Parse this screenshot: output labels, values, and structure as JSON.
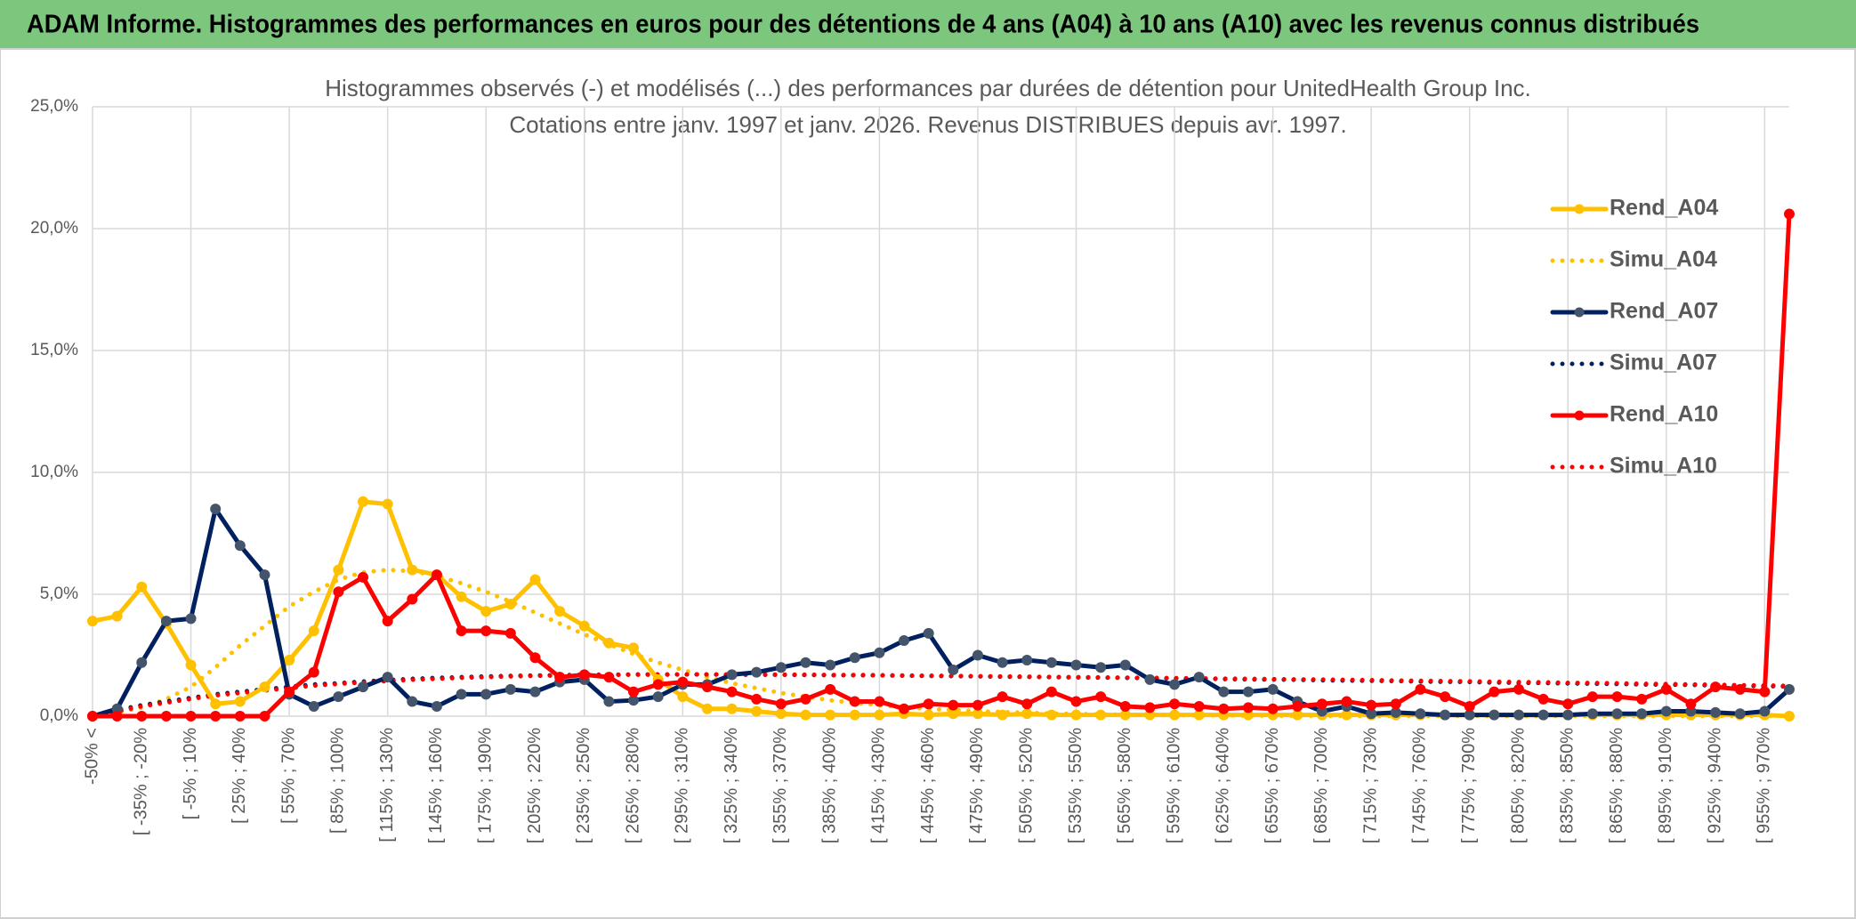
{
  "header": {
    "title": "ADAM Informe. Histogrammes des performances en euros pour des détentions de 4 ans (A04) à 10 ans (A10) avec les revenus connus distribués"
  },
  "chart_data": {
    "type": "line",
    "title": "Histogrammes observés (-) et modélisés (...) des performances par durées de détention pour UnitedHealth Group Inc.",
    "subtitle": "Cotations entre janv. 1997 et janv. 2026. Revenus DISTRIBUES depuis avr. 1997.",
    "categories": [
      "-50% <",
      null,
      "[ -35% ; -20%",
      null,
      "[ -5% ; 10%",
      null,
      "[ 25% ; 40%",
      null,
      "[ 55% ; 70%",
      null,
      "[ 85% ; 100%",
      null,
      "[ 115% ; 130%",
      null,
      "[ 145% ; 160%",
      null,
      "[ 175% ; 190%",
      null,
      "[ 205% ; 220%",
      null,
      "[ 235% ; 250%",
      null,
      "[ 265% ; 280%",
      null,
      "[ 295% ; 310%",
      null,
      "[ 325% ; 340%",
      null,
      "[ 355% ; 370%",
      null,
      "[ 385% ; 400%",
      null,
      "[ 415% ; 430%",
      null,
      "[ 445% ; 460%",
      null,
      "[ 475% ; 490%",
      null,
      "[ 505% ; 520%",
      null,
      "[ 535% ; 550%",
      null,
      "[ 565% ; 580%",
      null,
      "[ 595% ; 610%",
      null,
      "[ 625% ; 640%",
      null,
      "[ 655% ; 670%",
      null,
      "[ 685% ; 700%",
      null,
      "[ 715% ; 730%",
      null,
      "[ 745% ; 760%",
      null,
      "[ 775% ; 790%",
      null,
      "[ 805% ; 820%",
      null,
      "[ 835% ; 850%",
      null,
      "[ 865% ; 880%",
      null,
      "[ 895% ; 910%",
      null,
      "[ 925% ; 940%",
      null,
      "[ 955% ; 970%",
      null
    ],
    "series": [
      {
        "name": "Rend_A04",
        "color": "#FFC000",
        "style": "solid",
        "markers": true,
        "values": [
          3.9,
          4.1,
          5.3,
          3.8,
          2.1,
          0.5,
          0.6,
          1.2,
          2.3,
          3.5,
          6.0,
          8.8,
          8.7,
          6.0,
          5.8,
          4.9,
          4.3,
          4.6,
          5.6,
          4.3,
          3.7,
          3.0,
          2.8,
          1.5,
          0.8,
          0.3,
          0.3,
          0.2,
          0.1,
          0.05,
          0.05,
          0.05,
          0.05,
          0.1,
          0.05,
          0.1,
          0.1,
          0.05,
          0.1,
          0.05,
          0.05,
          0.05,
          0.05,
          0.05,
          0.05,
          0.05,
          0.05,
          0.05,
          0.05,
          0.05,
          0.05,
          0.05,
          0.05,
          0.05,
          0.05,
          0.05,
          0.05,
          0.05,
          0.05,
          0.05,
          0.05,
          0.05,
          0.05,
          0.05,
          0.05,
          0.05,
          0.05,
          0.05,
          0.05,
          0
        ]
      },
      {
        "name": "Simu_A04",
        "color": "#FFC000",
        "style": "dotted",
        "markers": false,
        "values": [
          0,
          0.15,
          0.35,
          0.7,
          1.2,
          2.0,
          2.9,
          3.7,
          4.5,
          5.1,
          5.6,
          5.9,
          6.0,
          5.95,
          5.75,
          5.45,
          5.1,
          4.7,
          4.25,
          3.8,
          3.35,
          2.95,
          2.55,
          2.2,
          1.9,
          1.6,
          1.35,
          1.15,
          0.95,
          0.8,
          0.65,
          0.55,
          0.45,
          0.37,
          0.3,
          0.25,
          0.2,
          0.17,
          0.14,
          0.11,
          0.09,
          0.07,
          0.06,
          0.05,
          0.04,
          0.03,
          0.03,
          0.02,
          0.02,
          0.02,
          0.01,
          0.01,
          0.01,
          0.01,
          0.01,
          0.01,
          0.01,
          0.01,
          0.01,
          0.01,
          0.01,
          0.01,
          0.01,
          0.01,
          0.01,
          0.01,
          0.01,
          0.01,
          0.01,
          0.01
        ]
      },
      {
        "name": "Rend_A07",
        "color": "#002060",
        "marker_color": "#44546A",
        "style": "solid",
        "markers": true,
        "values": [
          0,
          0.3,
          2.2,
          3.9,
          4.0,
          8.5,
          7.0,
          5.8,
          0.9,
          0.4,
          0.8,
          1.2,
          1.6,
          0.6,
          0.4,
          0.9,
          0.9,
          1.1,
          1.0,
          1.4,
          1.5,
          0.6,
          0.65,
          0.8,
          1.3,
          1.3,
          1.7,
          1.8,
          2.0,
          2.2,
          2.1,
          2.4,
          2.6,
          3.1,
          3.4,
          1.9,
          2.5,
          2.2,
          2.3,
          2.2,
          2.1,
          2.0,
          2.1,
          1.5,
          1.3,
          1.6,
          1.0,
          1.0,
          1.1,
          0.6,
          0.2,
          0.4,
          0.1,
          0.15,
          0.1,
          0.05,
          0.05,
          0.05,
          0.05,
          0.05,
          0.05,
          0.1,
          0.1,
          0.1,
          0.2,
          0.2,
          0.15,
          0.1,
          0.2,
          1.1
        ]
      },
      {
        "name": "Simu_A07",
        "color": "#002060",
        "style": "dotted",
        "markers": false,
        "values": [
          0,
          0.25,
          0.45,
          0.6,
          0.75,
          0.9,
          1.0,
          1.1,
          1.2,
          1.3,
          1.35,
          1.42,
          1.48,
          1.53,
          1.57,
          1.6,
          1.63,
          1.65,
          1.67,
          1.68,
          1.7,
          1.7,
          1.71,
          1.71,
          1.71,
          1.71,
          1.7,
          1.7,
          1.7,
          1.69,
          1.68,
          1.68,
          1.67,
          1.66,
          1.65,
          1.64,
          1.63,
          1.62,
          1.61,
          1.6,
          1.59,
          1.58,
          1.57,
          1.56,
          1.55,
          1.54,
          1.52,
          1.51,
          1.5,
          1.49,
          1.47,
          1.46,
          1.45,
          1.44,
          1.42,
          1.41,
          1.4,
          1.38,
          1.37,
          1.36,
          1.34,
          1.33,
          1.32,
          1.3,
          1.29,
          1.28,
          1.26,
          1.25,
          1.23,
          1.22
        ]
      },
      {
        "name": "Rend_A10",
        "color": "#FF0000",
        "style": "solid",
        "markers": true,
        "values": [
          0,
          0,
          0,
          0,
          0,
          0,
          0,
          0,
          1.0,
          1.8,
          5.1,
          5.7,
          3.9,
          4.8,
          5.8,
          3.5,
          3.5,
          3.4,
          2.4,
          1.6,
          1.7,
          1.6,
          1.0,
          1.3,
          1.4,
          1.2,
          1.0,
          0.7,
          0.5,
          0.7,
          1.1,
          0.6,
          0.6,
          0.3,
          0.5,
          0.45,
          0.45,
          0.8,
          0.5,
          1.0,
          0.6,
          0.8,
          0.4,
          0.35,
          0.5,
          0.4,
          0.3,
          0.35,
          0.3,
          0.4,
          0.5,
          0.6,
          0.45,
          0.5,
          1.1,
          0.8,
          0.4,
          1.0,
          1.1,
          0.7,
          0.5,
          0.8,
          0.8,
          0.7,
          1.1,
          0.5,
          1.2,
          1.1,
          1.0,
          20.6
        ]
      },
      {
        "name": "Simu_A10",
        "color": "#FF0000",
        "style": "dotted",
        "markers": false,
        "values": [
          0,
          0.2,
          0.4,
          0.55,
          0.7,
          0.85,
          0.95,
          1.05,
          1.15,
          1.25,
          1.32,
          1.38,
          1.44,
          1.49,
          1.53,
          1.57,
          1.6,
          1.63,
          1.65,
          1.67,
          1.68,
          1.69,
          1.7,
          1.7,
          1.71,
          1.71,
          1.71,
          1.7,
          1.7,
          1.7,
          1.69,
          1.69,
          1.68,
          1.67,
          1.66,
          1.65,
          1.64,
          1.63,
          1.62,
          1.61,
          1.6,
          1.59,
          1.58,
          1.57,
          1.56,
          1.55,
          1.54,
          1.53,
          1.52,
          1.51,
          1.5,
          1.49,
          1.48,
          1.46,
          1.45,
          1.44,
          1.43,
          1.41,
          1.4,
          1.39,
          1.37,
          1.36,
          1.35,
          1.33,
          1.32,
          1.3,
          1.29,
          1.27,
          1.26,
          1.24
        ]
      }
    ],
    "ylim": [
      0,
      25
    ],
    "yticks": [
      {
        "value": 0,
        "label": "0,0%"
      },
      {
        "value": 5,
        "label": "5,0%"
      },
      {
        "value": 10,
        "label": "10,0%"
      },
      {
        "value": 15,
        "label": "15,0%"
      },
      {
        "value": 20,
        "label": "20,0%"
      },
      {
        "value": 25,
        "label": "25,0%"
      }
    ],
    "grid": true,
    "legend": "right"
  }
}
